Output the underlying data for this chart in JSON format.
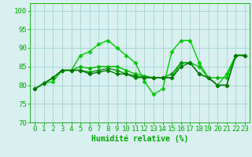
{
  "series": [
    {
      "x": [
        0,
        1,
        2,
        3,
        4,
        5,
        6,
        7,
        8,
        9,
        10,
        11,
        12,
        13,
        14,
        15,
        16,
        17,
        18,
        19,
        20,
        21,
        22,
        23
      ],
      "y": [
        79,
        80.5,
        81,
        84,
        84,
        88,
        89,
        91,
        92,
        90,
        88,
        86,
        81,
        77.5,
        79,
        89,
        92,
        92,
        86,
        82,
        80,
        83,
        88,
        88
      ],
      "color": "#00cc00",
      "marker": "D",
      "markersize": 2.5,
      "linewidth": 1.0
    },
    {
      "x": [
        0,
        1,
        2,
        3,
        4,
        5,
        6,
        7,
        8,
        9,
        10,
        11,
        12,
        13,
        14,
        15,
        16,
        17,
        18,
        19,
        20,
        21,
        22,
        23
      ],
      "y": [
        79,
        80.5,
        82,
        84,
        84,
        85,
        84.5,
        85,
        85,
        85,
        84,
        83,
        82.5,
        82,
        82,
        82,
        86,
        86,
        85,
        82,
        82,
        82,
        88,
        88
      ],
      "color": "#00bb00",
      "marker": "D",
      "markersize": 2.5,
      "linewidth": 1.0
    },
    {
      "x": [
        0,
        1,
        2,
        3,
        4,
        5,
        6,
        7,
        8,
        9,
        10,
        11,
        12,
        13,
        14,
        15,
        16,
        17,
        18,
        19,
        20,
        21,
        22,
        23
      ],
      "y": [
        79,
        80.5,
        82,
        84,
        84,
        84,
        83.5,
        84,
        84.5,
        84,
        83,
        82,
        82,
        82,
        82,
        83,
        86,
        86,
        83,
        82,
        80,
        80,
        88,
        88
      ],
      "color": "#009900",
      "marker": "D",
      "markersize": 2.5,
      "linewidth": 1.0
    },
    {
      "x": [
        0,
        1,
        2,
        3,
        4,
        5,
        6,
        7,
        8,
        9,
        10,
        11,
        12,
        13,
        14,
        15,
        16,
        17,
        18,
        19,
        20,
        21,
        22,
        23
      ],
      "y": [
        79,
        80.5,
        82,
        84,
        84,
        84,
        83,
        83.5,
        84,
        83,
        83,
        82.5,
        82,
        82,
        82,
        82,
        85,
        86,
        83,
        82,
        80,
        80,
        88,
        88
      ],
      "color": "#007700",
      "marker": "D",
      "markersize": 2.5,
      "linewidth": 1.0
    }
  ],
  "xlabel": "Humidité relative (%)",
  "ylabel": "",
  "xlim": [
    -0.5,
    23.5
  ],
  "ylim": [
    70,
    102
  ],
  "yticks": [
    70,
    75,
    80,
    85,
    90,
    95,
    100
  ],
  "xticks": [
    0,
    1,
    2,
    3,
    4,
    5,
    6,
    7,
    8,
    9,
    10,
    11,
    12,
    13,
    14,
    15,
    16,
    17,
    18,
    19,
    20,
    21,
    22,
    23
  ],
  "xtick_labels": [
    "0",
    "1",
    "2",
    "3",
    "4",
    "5",
    "6",
    "7",
    "8",
    "9",
    "10",
    "11",
    "12",
    "13",
    "14",
    "15",
    "16",
    "17",
    "18",
    "19",
    "20",
    "21",
    "22",
    "23"
  ],
  "bg_color": "#d8f0f0",
  "grid_color": "#99cccc",
  "axis_color": "#00aa00",
  "tick_color": "#00aa00",
  "label_color": "#00aa00",
  "xlabel_fontsize": 7,
  "tick_fontsize": 6.5
}
